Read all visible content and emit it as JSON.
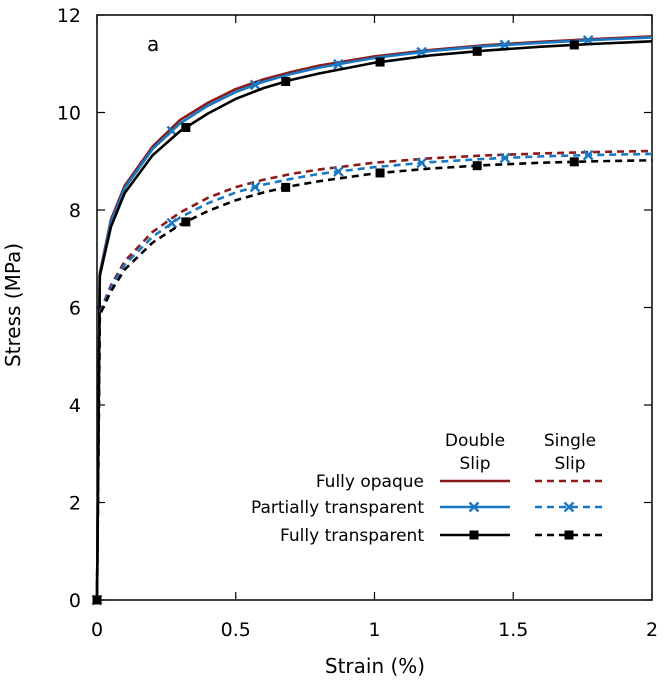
{
  "chart_data": {
    "type": "line",
    "panel_label": "a",
    "xlabel": "Strain (%)",
    "ylabel": "Stress (MPa)",
    "xlim": [
      0,
      2
    ],
    "ylim": [
      0,
      12
    ],
    "xticks": [
      0,
      0.5,
      1,
      1.5,
      2
    ],
    "xtick_labels": [
      "0",
      "0.5",
      "1",
      "1.5",
      "2"
    ],
    "yticks": [
      0,
      2,
      4,
      6,
      8,
      10,
      12
    ],
    "ytick_labels": [
      "0",
      "2",
      "4",
      "6",
      "8",
      "10",
      "12"
    ],
    "legend": {
      "position": "bottom-right",
      "column_headers": [
        {
          "line1": "Double",
          "line2": "Slip"
        },
        {
          "line1": "Single",
          "line2": "Slip"
        }
      ],
      "rows": [
        "Fully opaque",
        "Partially transparent",
        "Fully transparent"
      ]
    },
    "colors": {
      "fully_opaque": "#8b1a1a",
      "partially_transparent": "#1a78c2",
      "fully_transparent": "#000000"
    },
    "series": [
      {
        "name": "Fully opaque",
        "slip": "Double Slip",
        "style": "solid",
        "color": "#8b1a1a",
        "marker": "none",
        "x": [
          0,
          0.01,
          0.05,
          0.1,
          0.2,
          0.3,
          0.4,
          0.5,
          0.6,
          0.7,
          0.8,
          1.0,
          1.2,
          1.4,
          1.6,
          1.8,
          2.0
        ],
        "y": [
          0,
          6.7,
          7.8,
          8.5,
          9.3,
          9.85,
          10.2,
          10.48,
          10.68,
          10.83,
          10.96,
          11.15,
          11.28,
          11.38,
          11.45,
          11.51,
          11.56
        ]
      },
      {
        "name": "Partially transparent",
        "slip": "Double Slip",
        "style": "solid",
        "color": "#1a78c2",
        "marker": "x",
        "x": [
          0,
          0.01,
          0.05,
          0.1,
          0.2,
          0.3,
          0.4,
          0.5,
          0.6,
          0.7,
          0.8,
          1.0,
          1.2,
          1.4,
          1.6,
          1.8,
          2.0
        ],
        "y": [
          0,
          6.68,
          7.75,
          8.45,
          9.25,
          9.78,
          10.14,
          10.42,
          10.63,
          10.79,
          10.92,
          11.12,
          11.26,
          11.36,
          11.43,
          11.49,
          11.54
        ],
        "marker_x": [
          0,
          0.27,
          0.57,
          0.87,
          1.17,
          1.47,
          1.77
        ]
      },
      {
        "name": "Fully transparent",
        "slip": "Double Slip",
        "style": "solid",
        "color": "#000000",
        "marker": "square",
        "x": [
          0,
          0.01,
          0.05,
          0.1,
          0.2,
          0.3,
          0.4,
          0.5,
          0.6,
          0.7,
          0.8,
          1.0,
          1.2,
          1.4,
          1.6,
          1.8,
          2.0
        ],
        "y": [
          0,
          6.65,
          7.65,
          8.35,
          9.12,
          9.62,
          9.98,
          10.28,
          10.5,
          10.67,
          10.8,
          11.02,
          11.17,
          11.27,
          11.35,
          11.41,
          11.46
        ],
        "marker_x": [
          0,
          0.32,
          0.68,
          1.02,
          1.37,
          1.72
        ]
      },
      {
        "name": "Fully opaque",
        "slip": "Single Slip",
        "style": "dashed",
        "color": "#8b1a1a",
        "marker": "none",
        "x": [
          0,
          0.01,
          0.05,
          0.1,
          0.2,
          0.3,
          0.4,
          0.5,
          0.6,
          0.7,
          0.8,
          1.0,
          1.2,
          1.4,
          1.6,
          1.8,
          2.0
        ],
        "y": [
          0,
          5.9,
          6.45,
          6.95,
          7.55,
          7.95,
          8.25,
          8.47,
          8.62,
          8.74,
          8.83,
          8.97,
          9.06,
          9.12,
          9.16,
          9.19,
          9.21
        ]
      },
      {
        "name": "Partially transparent",
        "slip": "Single Slip",
        "style": "dashed",
        "color": "#1a78c2",
        "marker": "x",
        "x": [
          0,
          0.01,
          0.05,
          0.1,
          0.2,
          0.3,
          0.4,
          0.5,
          0.6,
          0.7,
          0.8,
          1.0,
          1.2,
          1.4,
          1.6,
          1.8,
          2.0
        ],
        "y": [
          0,
          5.88,
          6.4,
          6.88,
          7.45,
          7.85,
          8.14,
          8.36,
          8.52,
          8.64,
          8.74,
          8.88,
          8.98,
          9.05,
          9.1,
          9.13,
          9.15
        ],
        "marker_x": [
          0,
          0.27,
          0.57,
          0.87,
          1.17,
          1.47,
          1.77
        ]
      },
      {
        "name": "Fully transparent",
        "slip": "Single Slip",
        "style": "dashed",
        "color": "#000000",
        "marker": "square",
        "x": [
          0,
          0.01,
          0.05,
          0.1,
          0.2,
          0.3,
          0.4,
          0.5,
          0.6,
          0.7,
          0.8,
          1.0,
          1.2,
          1.4,
          1.6,
          1.8,
          2.0
        ],
        "y": [
          0,
          5.85,
          6.33,
          6.78,
          7.33,
          7.7,
          7.98,
          8.2,
          8.36,
          8.49,
          8.59,
          8.75,
          8.85,
          8.92,
          8.97,
          9.0,
          9.02
        ],
        "marker_x": [
          0,
          0.32,
          0.68,
          1.02,
          1.37,
          1.72
        ]
      }
    ]
  }
}
